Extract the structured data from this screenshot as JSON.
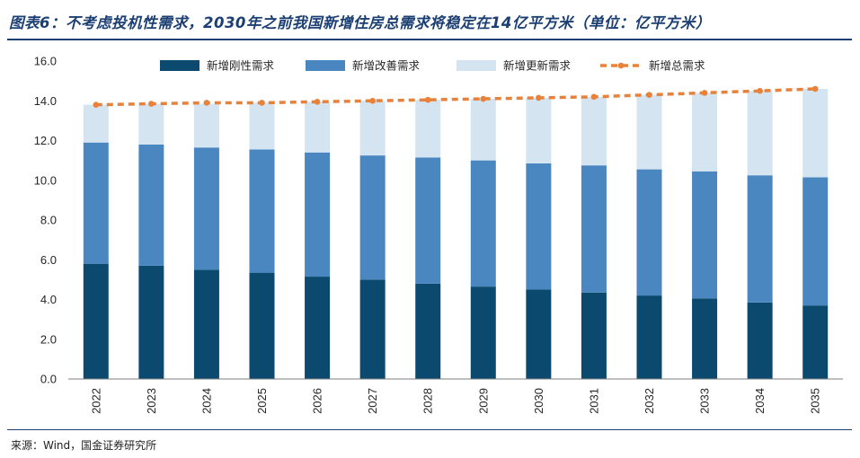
{
  "title": "图表6：不考虑投机性需求，2030年之前我国新增住房总需求将稳定在14亿平方米（单位：亿平方米）",
  "source": "来源：Wind，国金证券研究所",
  "colors": {
    "rigid": "#0b4a6e",
    "improve": "#4a86c0",
    "renew": "#d4e4f1",
    "total": "#e8823a"
  },
  "chart_data": {
    "type": "bar",
    "stacked": true,
    "categories": [
      "2022",
      "2023",
      "2024",
      "2025",
      "2026",
      "2027",
      "2028",
      "2029",
      "2030",
      "2031",
      "2032",
      "2033",
      "2034",
      "2035"
    ],
    "series": [
      {
        "name": "新增刚性需求",
        "key": "rigid",
        "values": [
          5.8,
          5.7,
          5.5,
          5.35,
          5.15,
          5.0,
          4.8,
          4.65,
          4.5,
          4.35,
          4.2,
          4.05,
          3.85,
          3.7
        ]
      },
      {
        "name": "新增改善需求",
        "key": "improve",
        "values": [
          6.1,
          6.1,
          6.15,
          6.2,
          6.25,
          6.25,
          6.35,
          6.35,
          6.35,
          6.4,
          6.35,
          6.4,
          6.4,
          6.45
        ]
      },
      {
        "name": "新增更新需求",
        "key": "renew",
        "values": [
          1.9,
          2.05,
          2.2,
          2.35,
          2.55,
          2.75,
          2.9,
          3.1,
          3.3,
          3.45,
          3.75,
          3.95,
          4.25,
          4.45
        ]
      },
      {
        "name": "新增总需求",
        "key": "total",
        "type": "line",
        "values": [
          13.8,
          13.85,
          13.9,
          13.9,
          13.95,
          14.0,
          14.05,
          14.1,
          14.15,
          14.2,
          14.3,
          14.4,
          14.5,
          14.6
        ]
      }
    ],
    "ylim": [
      0,
      16
    ],
    "yticks": [
      "0.0",
      "2.0",
      "4.0",
      "6.0",
      "8.0",
      "10.0",
      "12.0",
      "14.0",
      "16.0"
    ],
    "legend_position": "top",
    "grid": false
  }
}
